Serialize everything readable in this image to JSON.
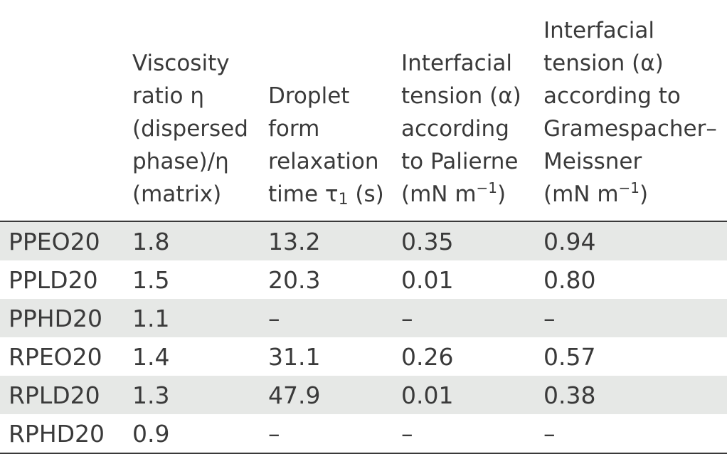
{
  "table": {
    "header": {
      "col1": [
        "Viscosity",
        "ratio η",
        "(dispersed",
        "phase)/η",
        "(matrix)"
      ],
      "col2_lines": [
        "Droplet",
        "form",
        "relaxation"
      ],
      "col2_last_prefix": "time τ",
      "col2_last_sub": "1",
      "col2_last_suffix": " (s)",
      "col3_lines": [
        "Interfacial",
        "tension (α)",
        "according",
        "to Palierne"
      ],
      "col3_unit_prefix": "(mN m",
      "col3_unit_sup": "−1",
      "col3_unit_suffix": ")",
      "col4_lines": [
        "Interfacial",
        "tension (α)",
        "according to",
        "Gramespacher–",
        "Meissner"
      ],
      "col4_unit_prefix": "(mN m",
      "col4_unit_sup": "−1",
      "col4_unit_suffix": ")"
    },
    "rows": [
      [
        "PPEO20",
        "1.8",
        "13.2",
        "0.35",
        "0.94"
      ],
      [
        "PPLD20",
        "1.5",
        "20.3",
        "0.01",
        "0.80"
      ],
      [
        "PPHD20",
        "1.1",
        "–",
        "–",
        "–"
      ],
      [
        "RPEO20",
        "1.4",
        "31.1",
        "0.26",
        "0.57"
      ],
      [
        "RPLD20",
        "1.3",
        "47.9",
        "0.01",
        "0.38"
      ],
      [
        "RPHD20",
        "0.9",
        "–",
        "–",
        "–"
      ]
    ]
  }
}
